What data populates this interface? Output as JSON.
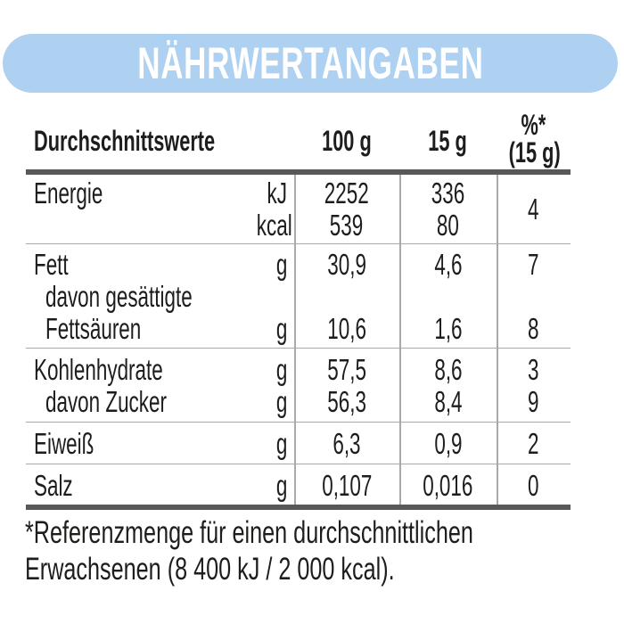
{
  "banner": {
    "title": "NÄHRWERTANGABEN"
  },
  "table": {
    "header": {
      "label": "Durchschnittswerte",
      "col_100g": "100 g",
      "col_15g": "15 g",
      "col_pct_line1": "%*",
      "col_pct_line2": "(15 g)"
    },
    "groups": [
      {
        "name": "Energie",
        "percent": "4",
        "lines": [
          {
            "label": "Energie",
            "unit": "kJ",
            "v100": "2252",
            "v15": "336"
          },
          {
            "label": "",
            "unit": "kcal",
            "v100": "539",
            "v15": "80"
          }
        ]
      },
      {
        "name": "Fett",
        "lines": [
          {
            "label": "Fett",
            "unit": "g",
            "v100": "30,9",
            "v15": "4,6",
            "pct": "7"
          },
          {
            "label": "davon gesättigte"
          },
          {
            "label": "Fettsäuren",
            "unit": "g",
            "v100": "10,6",
            "v15": "1,6",
            "pct": "8"
          }
        ]
      },
      {
        "name": "Kohlenhydrate",
        "lines": [
          {
            "label": "Kohlenhydrate",
            "unit": "g",
            "v100": "57,5",
            "v15": "8,6",
            "pct": "3"
          },
          {
            "label": "davon Zucker",
            "unit": "g",
            "v100": "56,3",
            "v15": "8,4",
            "pct": "9"
          }
        ]
      },
      {
        "name": "Eiweiß",
        "lines": [
          {
            "label": "Eiweiß",
            "unit": "g",
            "v100": "6,3",
            "v15": "0,9",
            "pct": "2"
          }
        ]
      },
      {
        "name": "Salz",
        "lines": [
          {
            "label": "Salz",
            "unit": "g",
            "v100": "0,107",
            "v15": "0,016",
            "pct": "0"
          }
        ]
      }
    ]
  },
  "footnote": {
    "line1": "*Referenzmenge für einen durchschnittlichen",
    "line2": "Erwachsenen (8 400 kJ / 2 000 kcal)."
  },
  "colors": {
    "background": "#ffffff",
    "banner_bg": "#aed1f2",
    "banner_text": "#ffffff",
    "text": "#1d1d1b",
    "thick_line": "#58585a",
    "thin_line": "#a9a9a9"
  }
}
